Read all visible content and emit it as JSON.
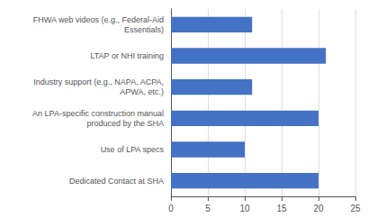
{
  "chart_data": {
    "type": "bar",
    "orientation": "horizontal",
    "categories": [
      "Dedicated Contact at SHA",
      "Use of LPA specs",
      "An LPA-specific construction manual\nproduced by the SHA",
      "Industry support (e.g., NAPA, ACPA,\nAPWA, etc.)",
      "LTAP or NHI training",
      "FHWA web videos (e.g., Federal-Aid\nEssentials)"
    ],
    "values": [
      20,
      10,
      20,
      11,
      21,
      11
    ],
    "color": "#4472C4",
    "xlim": [
      0,
      25
    ],
    "xticks": [
      0,
      5,
      10,
      15,
      20,
      25
    ],
    "grid": true
  }
}
